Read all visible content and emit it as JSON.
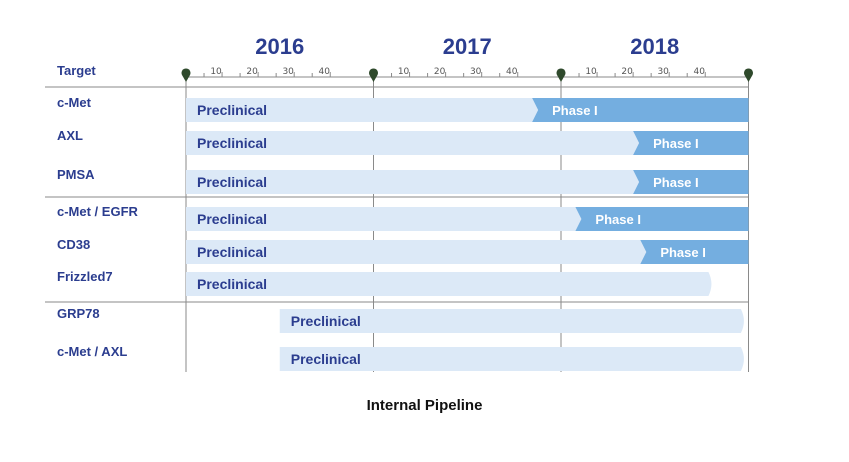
{
  "caption": "Internal Pipeline",
  "chart_data": {
    "type": "gantt",
    "title": "",
    "target_header": "Target",
    "years": [
      "2016",
      "2017",
      "2018"
    ],
    "week_ticks": [
      "10",
      "20",
      "30",
      "40"
    ],
    "x_unit": "weeks since start of 2016 (52 per year)",
    "xlim": [
      0,
      156
    ],
    "groups": [
      [
        0,
        1,
        2
      ],
      [
        3,
        4,
        5
      ],
      [
        6,
        7
      ]
    ],
    "rows": [
      {
        "target": "c-Met",
        "phases": [
          {
            "name": "Preclinical",
            "start": 0,
            "end": 96
          },
          {
            "name": "Phase I",
            "start": 96,
            "end": 156
          }
        ]
      },
      {
        "target": "AXL",
        "phases": [
          {
            "name": "Preclinical",
            "start": 0,
            "end": 124
          },
          {
            "name": "Phase I",
            "start": 124,
            "end": 156
          }
        ]
      },
      {
        "target": "PMSA",
        "phases": [
          {
            "name": "Preclinical",
            "start": 0,
            "end": 124
          },
          {
            "name": "Phase I",
            "start": 124,
            "end": 156
          }
        ]
      },
      {
        "target": "c-Met / EGFR",
        "phases": [
          {
            "name": "Preclinical",
            "start": 0,
            "end": 108
          },
          {
            "name": "Phase I",
            "start": 108,
            "end": 156
          }
        ]
      },
      {
        "target": "CD38",
        "phases": [
          {
            "name": "Preclinical",
            "start": 0,
            "end": 126
          },
          {
            "name": "Phase I",
            "start": 126,
            "end": 156
          }
        ]
      },
      {
        "target": "Frizzled7",
        "phases": [
          {
            "name": "Preclinical",
            "start": 0,
            "end": 146
          }
        ]
      },
      {
        "target": "GRP78",
        "phases": [
          {
            "name": "Preclinical",
            "start": 26,
            "end": 155
          }
        ]
      },
      {
        "target": "c-Met / AXL",
        "phases": [
          {
            "name": "Preclinical",
            "start": 26,
            "end": 155
          }
        ]
      }
    ],
    "colors": {
      "preclinical": "#dce9f7",
      "phase1": "#74aee0",
      "axis": "#8a8a8a",
      "marker": "#2f4a2c",
      "text": "#2b3d8f"
    }
  }
}
